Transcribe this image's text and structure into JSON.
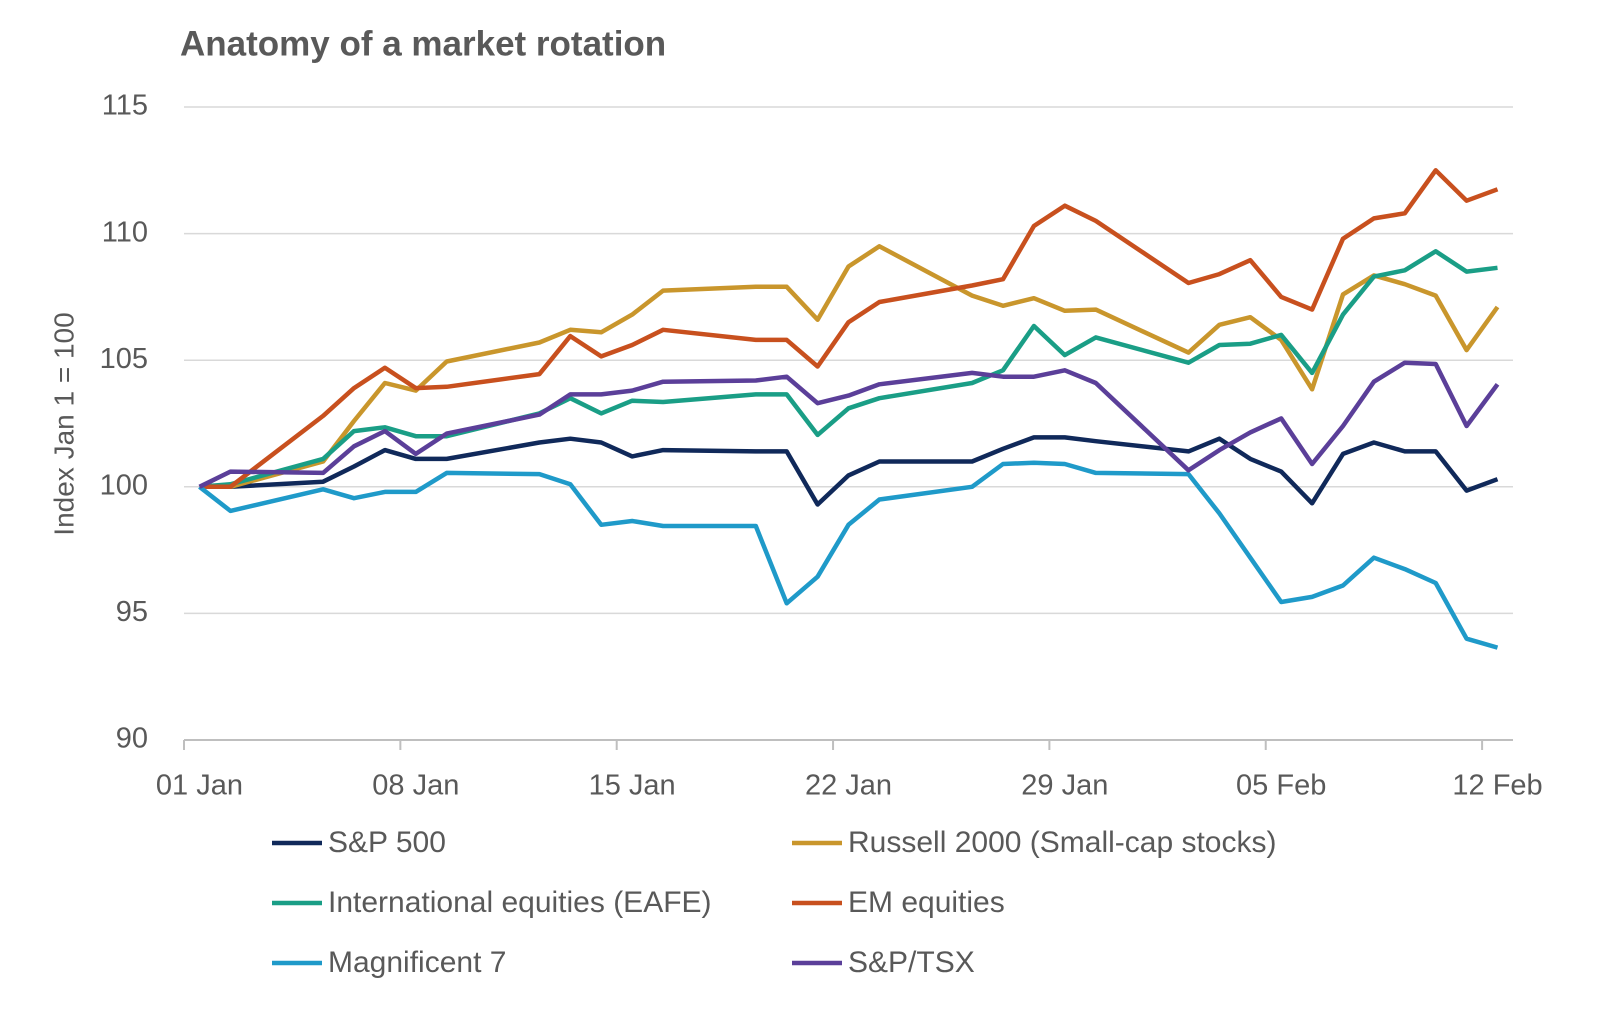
{
  "chart_data": {
    "type": "line",
    "title": "Anatomy of a market rotation",
    "y_label": "Index  Jan 1 = 100",
    "x": [
      "01 Jan",
      "02 Jan",
      "05 Jan",
      "06 Jan",
      "07 Jan",
      "08 Jan",
      "09 Jan",
      "12 Jan",
      "13 Jan",
      "14 Jan",
      "15 Jan",
      "16 Jan",
      "19 Jan",
      "20 Jan",
      "21 Jan",
      "22 Jan",
      "23 Jan",
      "26 Jan",
      "27 Jan",
      "28 Jan",
      "29 Jan",
      "30 Jan",
      "02 Feb",
      "03 Feb",
      "04 Feb",
      "05 Feb",
      "06 Feb",
      "07 Feb",
      "08 Feb",
      "09 Feb",
      "10 Feb",
      "11 Feb",
      "12 Feb"
    ],
    "xlim": [
      "01 Jan",
      "12 Feb"
    ],
    "xticks": [
      "01 Jan",
      "08 Jan",
      "15 Jan",
      "22 Jan",
      "29 Jan",
      "05 Feb",
      "12 Feb"
    ],
    "ylim": [
      90,
      115
    ],
    "yticks": [
      90,
      95,
      100,
      105,
      110,
      115
    ],
    "grid": true,
    "series": [
      {
        "name": "S&P 500",
        "color": "#10295a",
        "values": [
          100,
          100,
          100.2,
          100.8,
          101.45,
          101.1,
          101.1,
          101.75,
          101.9,
          101.75,
          101.2,
          101.45,
          101.4,
          101.4,
          99.3,
          100.45,
          101.0,
          101.0,
          101.5,
          101.95,
          101.95,
          101.8,
          101.4,
          101.9,
          101.1,
          100.6,
          99.35,
          101.3,
          101.75,
          101.4,
          101.4,
          99.85,
          100.3
        ]
      },
      {
        "name": "Russell 2000 (Small-cap stocks)",
        "color": "#c9962c",
        "values": [
          100,
          100,
          101,
          102.6,
          104.1,
          103.8,
          104.95,
          105.7,
          106.2,
          106.1,
          106.8,
          107.75,
          107.9,
          107.9,
          106.6,
          108.7,
          109.5,
          107.55,
          107.15,
          107.45,
          106.95,
          107.0,
          105.3,
          106.4,
          106.7,
          105.8,
          103.85,
          107.6,
          108.35,
          108.0,
          107.55,
          105.4,
          107.1
        ]
      },
      {
        "name": "International equities (EAFE)",
        "color": "#1a9e86",
        "values": [
          100,
          100.1,
          101.1,
          102.2,
          102.35,
          102.0,
          102.0,
          102.9,
          103.5,
          102.9,
          103.4,
          103.35,
          103.65,
          103.65,
          102.05,
          103.1,
          103.5,
          104.1,
          104.6,
          106.35,
          105.2,
          105.9,
          104.9,
          105.6,
          105.65,
          106.0,
          104.5,
          106.8,
          108.3,
          108.55,
          109.3,
          108.5,
          108.65
        ]
      },
      {
        "name": "EM equities",
        "color": "#c8501e",
        "values": [
          100,
          100,
          102.8,
          103.9,
          104.7,
          103.9,
          103.95,
          104.45,
          105.95,
          105.15,
          105.6,
          106.2,
          105.8,
          105.8,
          104.75,
          106.5,
          107.3,
          107.95,
          108.2,
          110.3,
          111.1,
          110.5,
          108.05,
          108.4,
          108.95,
          107.5,
          107.0,
          109.8,
          110.6,
          110.8,
          112.5,
          111.3,
          111.75
        ]
      },
      {
        "name": "Magnificent 7",
        "color": "#1f9ac9",
        "values": [
          100,
          99.05,
          99.9,
          99.55,
          99.8,
          99.8,
          100.55,
          100.5,
          100.1,
          98.5,
          98.65,
          98.45,
          98.45,
          95.4,
          96.45,
          98.5,
          99.5,
          100.0,
          100.9,
          100.95,
          100.9,
          100.55,
          100.5,
          98.95,
          97.2,
          95.45,
          95.65,
          96.1,
          97.2,
          96.75,
          96.2,
          94.0,
          93.65
        ]
      },
      {
        "name": "S&P/TSX",
        "color": "#5b3f99",
        "values": [
          100,
          100.6,
          100.55,
          101.6,
          102.2,
          101.3,
          102.1,
          102.85,
          103.65,
          103.65,
          103.8,
          104.15,
          104.2,
          104.35,
          103.3,
          103.6,
          104.05,
          104.5,
          104.35,
          104.35,
          104.6,
          104.1,
          100.65,
          101.45,
          102.15,
          102.7,
          100.9,
          102.4,
          104.15,
          104.9,
          104.85,
          102.4,
          104.05
        ]
      }
    ]
  }
}
